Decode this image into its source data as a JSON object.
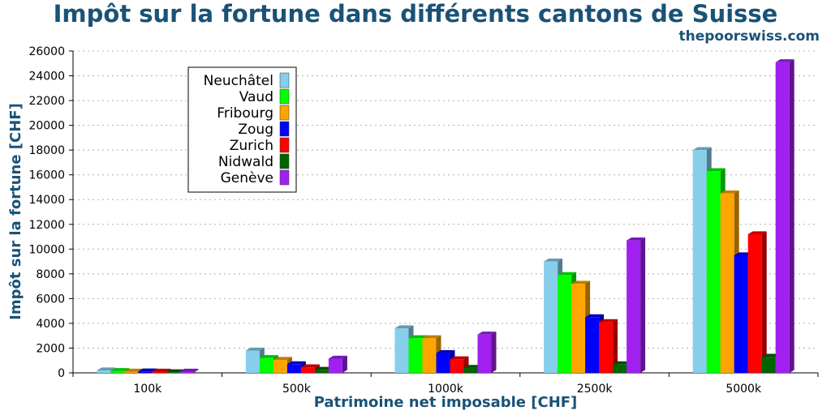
{
  "chart_data": {
    "type": "bar",
    "title": "Impôt sur la fortune dans différents cantons de Suisse",
    "source": "thepoorswiss.com",
    "xlabel": "Patrimoine net imposable [CHF]",
    "ylabel": "Impôt sur la fortune [CHF]",
    "categories": [
      "100k",
      "500k",
      "1000k",
      "2500k",
      "5000k"
    ],
    "ylim": [
      0,
      26000
    ],
    "yticks": [
      0,
      2000,
      4000,
      6000,
      8000,
      10000,
      12000,
      14000,
      16000,
      18000,
      20000,
      22000,
      24000,
      26000
    ],
    "grid": true,
    "legend_position": "top-left",
    "series": [
      {
        "name": "Neuchâtel",
        "color": "#87ceeb",
        "values": [
          200,
          1800,
          3600,
          9000,
          18000
        ]
      },
      {
        "name": "Vaud",
        "color": "#00ff00",
        "values": [
          150,
          1200,
          2800,
          7900,
          16300
        ]
      },
      {
        "name": "Fribourg",
        "color": "#ffa500",
        "values": [
          100,
          1050,
          2800,
          7200,
          14500
        ]
      },
      {
        "name": "Zoug",
        "color": "#0000ff",
        "values": [
          120,
          700,
          1600,
          4500,
          9500
        ]
      },
      {
        "name": "Zurich",
        "color": "#ff0000",
        "values": [
          100,
          450,
          1100,
          4100,
          11200
        ]
      },
      {
        "name": "Nidwald",
        "color": "#006400",
        "values": [
          50,
          250,
          400,
          700,
          1300
        ]
      },
      {
        "name": "Genève",
        "color": "#a020f0",
        "values": [
          100,
          1150,
          3100,
          10700,
          25100
        ]
      }
    ]
  }
}
